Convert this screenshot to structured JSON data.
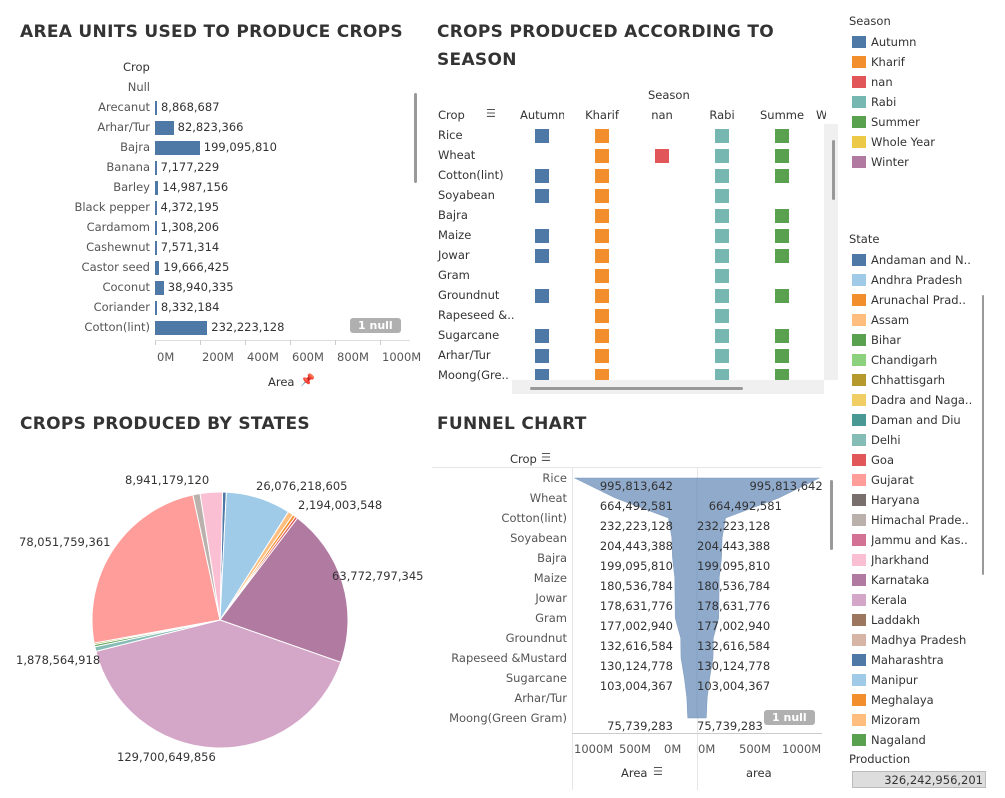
{
  "area_chart": {
    "title": "AREA UNITS USED TO PRODUCE CROPS",
    "col_header": "Crop",
    "axis_title": "Area",
    "null_badge": "1 null",
    "ticks": [
      "0M",
      "200M",
      "400M",
      "600M",
      "800M",
      "1000M"
    ],
    "rows": [
      {
        "crop": "Null",
        "label": ""
      },
      {
        "crop": "Arecanut",
        "label": "8,868,687"
      },
      {
        "crop": "Arhar/Tur",
        "label": "82,823,366"
      },
      {
        "crop": "Bajra",
        "label": "199,095,810"
      },
      {
        "crop": "Banana",
        "label": "7,177,229"
      },
      {
        "crop": "Barley",
        "label": "14,987,156"
      },
      {
        "crop": "Black pepper",
        "label": "4,372,195"
      },
      {
        "crop": "Cardamom",
        "label": "1,308,206"
      },
      {
        "crop": "Cashewnut",
        "label": "7,571,314"
      },
      {
        "crop": "Castor seed",
        "label": "19,666,425"
      },
      {
        "crop": "Coconut",
        "label": "38,940,335"
      },
      {
        "crop": "Coriander",
        "label": "8,332,184"
      },
      {
        "crop": "Cotton(lint)",
        "label": "232,223,128"
      }
    ]
  },
  "season_chart": {
    "title_line1": "CROPS PRODUCED ACCORDING TO",
    "title_line2": "SEASON",
    "season_header": "Season",
    "crop_header": "Crop",
    "columns": [
      "Autumn",
      "Kharif",
      "nan",
      "Rabi",
      "Summer",
      "W"
    ],
    "crops": [
      "Rice",
      "Wheat",
      "Cotton(lint)",
      "Soyabean",
      "Bajra",
      "Maize",
      "Jowar",
      "Gram",
      "Groundnut",
      "Rapeseed &..",
      "Sugarcane",
      "Arhar/Tur",
      "Moong(Gre.."
    ],
    "matrix": [
      [
        1,
        1,
        0,
        1,
        1
      ],
      [
        0,
        1,
        1,
        1,
        1
      ],
      [
        1,
        1,
        0,
        1,
        1
      ],
      [
        1,
        1,
        0,
        1,
        0
      ],
      [
        0,
        1,
        0,
        1,
        1
      ],
      [
        1,
        1,
        0,
        1,
        1
      ],
      [
        1,
        1,
        0,
        1,
        1
      ],
      [
        0,
        1,
        0,
        1,
        0
      ],
      [
        1,
        1,
        0,
        1,
        1
      ],
      [
        0,
        1,
        0,
        1,
        0
      ],
      [
        1,
        1,
        0,
        1,
        1
      ],
      [
        1,
        1,
        0,
        1,
        1
      ],
      [
        1,
        1,
        0,
        1,
        1
      ]
    ],
    "colors": [
      "#4e79a7",
      "#f28e2b",
      "#e15759",
      "#76b7b2",
      "#59a14f"
    ]
  },
  "pie_chart": {
    "title": "CROPS PRODUCED BY STATES",
    "labels": [
      "8,941,179,120",
      "26,076,218,605",
      "2,194,003,548",
      "78,051,759,361",
      "63,772,797,345",
      "1,878,564,918",
      "129,700,649,856"
    ]
  },
  "funnel_chart": {
    "title": "FUNNEL CHART",
    "crop_header": "Crop",
    "axis_left": "Area",
    "axis_right": "area",
    "null_badge": "1 null",
    "ticks_left": [
      "1000M",
      "500M",
      "0M"
    ],
    "ticks_right": [
      "0M",
      "500M",
      "1000M"
    ],
    "rows": [
      {
        "crop": "Rice",
        "value": "995,813,642"
      },
      {
        "crop": "Wheat",
        "value": "664,492,581"
      },
      {
        "crop": "Cotton(lint)",
        "value": "232,223,128"
      },
      {
        "crop": "Soyabean",
        "value": "204,443,388"
      },
      {
        "crop": "Bajra",
        "value": "199,095,810"
      },
      {
        "crop": "Maize",
        "value": "180,536,784"
      },
      {
        "crop": "Jowar",
        "value": "178,631,776"
      },
      {
        "crop": "Gram",
        "value": "177,002,940"
      },
      {
        "crop": "Groundnut",
        "value": "132,616,584"
      },
      {
        "crop": "Rapeseed &Mustard",
        "value": "130,124,778"
      },
      {
        "crop": "Sugarcane",
        "value": "103,004,367"
      },
      {
        "crop": "Arhar/Tur",
        "value": ""
      },
      {
        "crop": "Moong(Green Gram)",
        "value": "75,739,283"
      }
    ]
  },
  "season_legend": {
    "title": "Season",
    "items": [
      {
        "label": "Autumn",
        "color": "#4e79a7"
      },
      {
        "label": "Kharif",
        "color": "#f28e2b"
      },
      {
        "label": "nan",
        "color": "#e15759"
      },
      {
        "label": "Rabi",
        "color": "#76b7b2"
      },
      {
        "label": "Summer",
        "color": "#59a14f"
      },
      {
        "label": "Whole Year",
        "color": "#edc948"
      },
      {
        "label": "Winter",
        "color": "#b07aa1"
      }
    ]
  },
  "state_legend": {
    "title": "State",
    "items": [
      {
        "label": "Andaman and N..",
        "color": "#4e79a7"
      },
      {
        "label": "Andhra Pradesh",
        "color": "#a0cbe8"
      },
      {
        "label": "Arunachal Prad..",
        "color": "#f28e2b"
      },
      {
        "label": "Assam",
        "color": "#ffbe7d"
      },
      {
        "label": "Bihar",
        "color": "#59a14f"
      },
      {
        "label": "Chandigarh",
        "color": "#8cd17d"
      },
      {
        "label": "Chhattisgarh",
        "color": "#b6992d"
      },
      {
        "label": "Dadra and Naga..",
        "color": "#f1ce63"
      },
      {
        "label": "Daman and Diu",
        "color": "#499894"
      },
      {
        "label": "Delhi",
        "color": "#86bcb6"
      },
      {
        "label": "Goa",
        "color": "#e15759"
      },
      {
        "label": "Gujarat",
        "color": "#ff9d9a"
      },
      {
        "label": "Haryana",
        "color": "#79706e"
      },
      {
        "label": "Himachal Prade..",
        "color": "#bab0ac"
      },
      {
        "label": "Jammu and Kas..",
        "color": "#d37295"
      },
      {
        "label": "Jharkhand",
        "color": "#fabfd2"
      },
      {
        "label": "Karnataka",
        "color": "#b07aa1"
      },
      {
        "label": "Kerala",
        "color": "#d4a6c8"
      },
      {
        "label": "Laddakh",
        "color": "#9d7660"
      },
      {
        "label": "Madhya Pradesh",
        "color": "#d7b5a6"
      },
      {
        "label": "Maharashtra",
        "color": "#4e79a7"
      },
      {
        "label": "Manipur",
        "color": "#a0cbe8"
      },
      {
        "label": "Meghalaya",
        "color": "#f28e2b"
      },
      {
        "label": "Mizoram",
        "color": "#ffbe7d"
      },
      {
        "label": "Nagaland",
        "color": "#59a14f"
      }
    ]
  },
  "production": {
    "title": "Production",
    "value": "326,242,956,201"
  },
  "chart_data": [
    {
      "type": "bar",
      "title": "AREA UNITS USED TO PRODUCE CROPS",
      "xlabel": "Area",
      "ylabel": "Crop",
      "categories": [
        "Arecanut",
        "Arhar/Tur",
        "Bajra",
        "Banana",
        "Barley",
        "Black pepper",
        "Cardamom",
        "Cashewnut",
        "Castor seed",
        "Coconut",
        "Coriander",
        "Cotton(lint)"
      ],
      "values": [
        8868687,
        82823366,
        199095810,
        7177229,
        14987156,
        4372195,
        1308206,
        7571314,
        19666425,
        38940335,
        8332184,
        232223128
      ],
      "xlim": [
        0,
        1100000000
      ]
    },
    {
      "type": "pie",
      "title": "CROPS PRODUCED BY STATES",
      "slices": [
        {
          "state": "Andaman and N..",
          "value": 1500000000
        },
        {
          "state": "Andhra Pradesh",
          "value": 26076218605
        },
        {
          "state": "Assam",
          "value": 2194003548
        },
        {
          "state": "Arunachal Prad..",
          "value": 1200000000
        },
        {
          "state": "Goa",
          "value": 1000000000
        },
        {
          "state": "Karnataka",
          "value": 63772797345
        },
        {
          "state": "Kerala",
          "value": 129700649856
        },
        {
          "state": "Delhi",
          "value": 1878564918
        },
        {
          "state": "Bihar",
          "value": 900000000
        },
        {
          "state": "Chhattisgarh",
          "value": 600000000
        },
        {
          "state": "Gujarat",
          "value": 78051759361
        },
        {
          "state": "Himachal Prade..",
          "value": 2900000000
        },
        {
          "state": "Jharkhand",
          "value": 8941179120
        }
      ]
    },
    {
      "type": "bar",
      "title": "FUNNEL CHART",
      "categories": [
        "Rice",
        "Wheat",
        "Cotton(lint)",
        "Soyabean",
        "Bajra",
        "Maize",
        "Jowar",
        "Gram",
        "Groundnut",
        "Rapeseed &Mustard",
        "Sugarcane",
        "Arhar/Tur",
        "Moong(Green Gram)"
      ],
      "values": [
        995813642,
        664492581,
        232223128,
        204443388,
        199095810,
        180536784,
        178631776,
        177002940,
        132616584,
        130124778,
        103004367,
        82823366,
        75739283
      ],
      "xlim": [
        0,
        1100000000
      ]
    }
  ]
}
